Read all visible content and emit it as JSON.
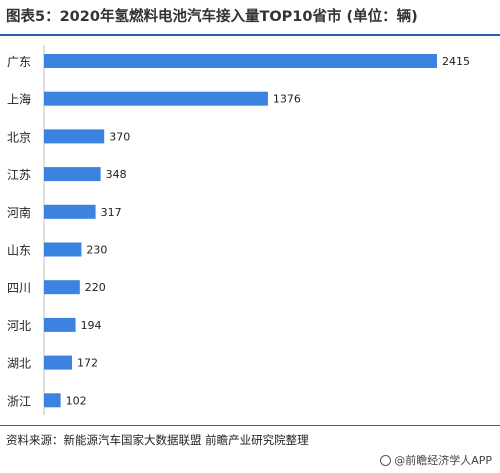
{
  "title": "图表5：2020年氢燃料电池汽车接入量TOP10省市 (单位：辆)",
  "source": "资料来源：新能源汽车国家大数据联盟 前瞻产业研究院整理",
  "brand": "@前瞻经济学人APP",
  "colors": {
    "bar": "#3c82e0",
    "rule": "#2b5fa6"
  },
  "chart_data": {
    "type": "bar",
    "orientation": "horizontal",
    "categories": [
      "广东",
      "上海",
      "北京",
      "江苏",
      "河南",
      "山东",
      "四川",
      "河北",
      "湖北",
      "浙江"
    ],
    "values": [
      2415,
      1376,
      370,
      348,
      317,
      230,
      220,
      194,
      172,
      102
    ],
    "title": "图表5：2020年氢燃料电池汽车接入量TOP10省市 (单位：辆)",
    "xlim": [
      0,
      2415
    ],
    "grid": false,
    "legend": "none"
  }
}
